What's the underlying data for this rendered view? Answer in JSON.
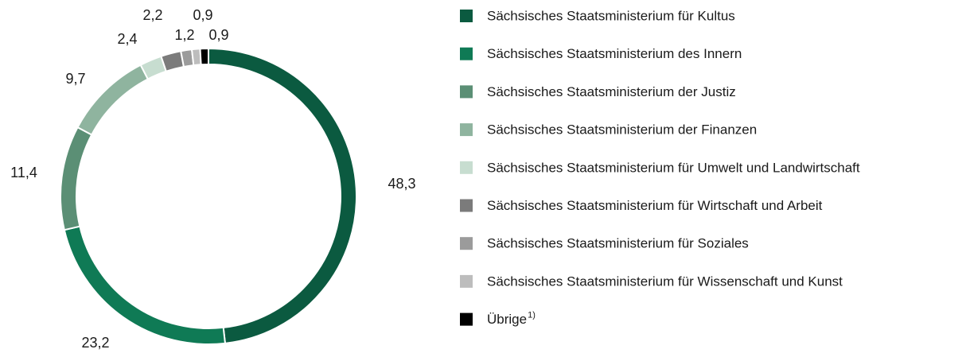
{
  "chart_data": {
    "type": "donut",
    "categories": [
      "Sächsisches Staatsministerium für Kultus",
      "Sächsisches Staatsministerium des Innern",
      "Sächsisches Staatsministerium der Justiz",
      "Sächsisches Staatsministerium der Finanzen",
      "Sächsisches Staatsministerium für Umwelt und Landwirtschaft",
      "Sächsisches Staatsministerium für Wirtschaft und Arbeit",
      "Sächsisches Staatsministerium für Soziales",
      "Sächsisches Staatsministerium für Wissenschaft und Kunst",
      "Übrige"
    ],
    "footnote_mark": "1)",
    "values": [
      48.3,
      23.2,
      11.4,
      9.7,
      2.4,
      2.2,
      1.2,
      0.9,
      0.9
    ],
    "value_labels": [
      "48,3",
      "23,2",
      "11,4",
      "9,7",
      "2,4",
      "2,2",
      "1,2",
      "0,9",
      "0,9"
    ],
    "colors": [
      "#0b5a40",
      "#0f7a55",
      "#5b8f75",
      "#8fb49f",
      "#c7ddd0",
      "#7b7b7b",
      "#9b9b9b",
      "#bdbdbd",
      "#000000"
    ],
    "legend": "right"
  }
}
